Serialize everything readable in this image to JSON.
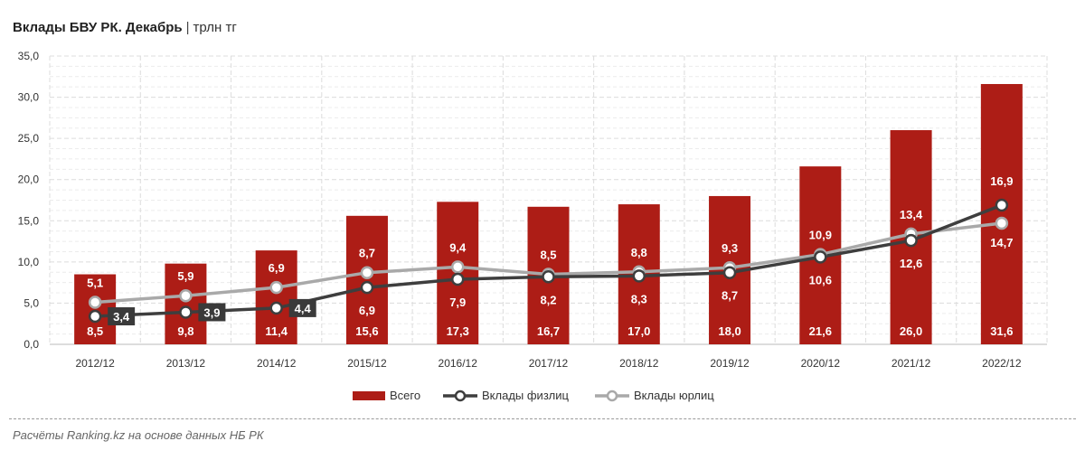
{
  "header": {
    "title": "Вклады БВУ РК. Декабрь",
    "separator": "|",
    "unit": "трлн тг"
  },
  "source": "Расчёты Ranking.kz на основе данных НБ РК",
  "colors": {
    "bars": "#ad1d16",
    "individuals": "#3e3e3e",
    "legal": "#a9a9a9",
    "grid": "#dcdcdc",
    "label_box": "#3a3a3a"
  },
  "chart_data": {
    "type": "bar",
    "categories": [
      "2012/12",
      "2013/12",
      "2014/12",
      "2015/12",
      "2016/12",
      "2017/12",
      "2018/12",
      "2019/12",
      "2020/12",
      "2021/12",
      "2022/12"
    ],
    "ylim": [
      0,
      35
    ],
    "ytick_labels": [
      "0,0",
      "5,0",
      "10,0",
      "15,0",
      "20,0",
      "25,0",
      "30,0",
      "35,0"
    ],
    "grid": true,
    "legend_position": "bottom",
    "series": [
      {
        "name": "Всего",
        "kind": "bar",
        "values": [
          8.5,
          9.8,
          11.4,
          15.6,
          17.3,
          16.7,
          17.0,
          18.0,
          21.6,
          26.0,
          31.6
        ],
        "labels": [
          "8,5",
          "9,8",
          "11,4",
          "15,6",
          "17,3",
          "16,7",
          "17,0",
          "18,0",
          "21,6",
          "26,0",
          "31,6"
        ]
      },
      {
        "name": "Вклады физлиц",
        "kind": "line",
        "values": [
          3.4,
          3.9,
          4.4,
          6.9,
          7.9,
          8.2,
          8.3,
          8.7,
          10.6,
          12.6,
          16.9
        ],
        "labels": [
          "3,4",
          "3,9",
          "4,4",
          "6,9",
          "7,9",
          "8,2",
          "8,3",
          "8,7",
          "10,6",
          "12,6",
          "16,9"
        ]
      },
      {
        "name": "Вклады юрлиц",
        "kind": "line",
        "values": [
          5.1,
          5.9,
          6.9,
          8.7,
          9.4,
          8.5,
          8.8,
          9.3,
          10.9,
          13.4,
          14.7
        ],
        "labels": [
          "5,1",
          "5,9",
          "6,9",
          "8,7",
          "9,4",
          "8,5",
          "8,8",
          "9,3",
          "10,9",
          "13,4",
          "14,7"
        ]
      }
    ]
  }
}
